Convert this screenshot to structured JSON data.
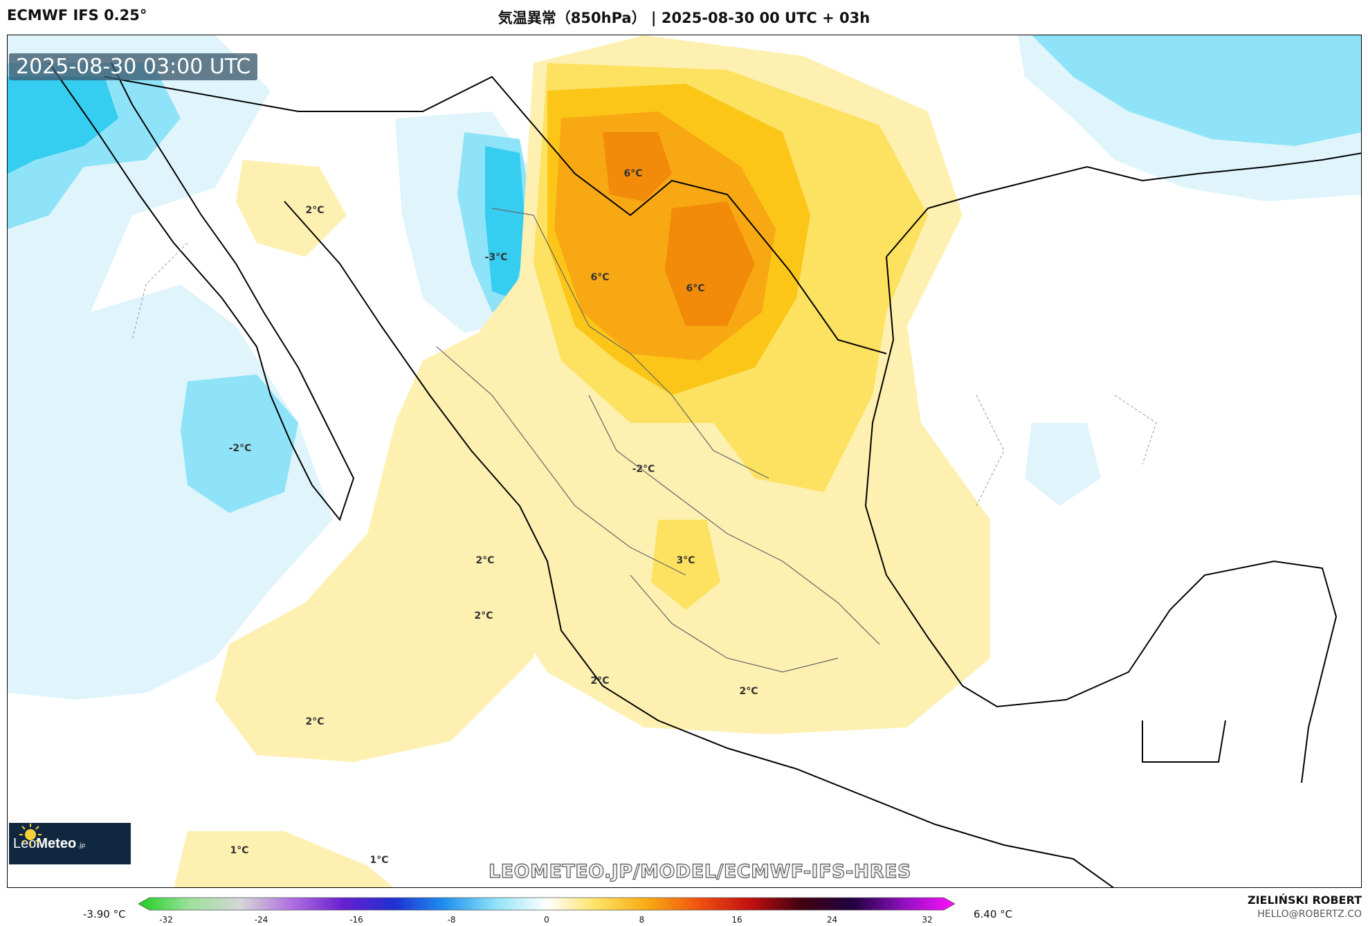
{
  "header": {
    "model": "ECMWF IFS 0.25°",
    "title": "気温異常（850hPa） | 2025-08-30 00 UTC + 03h"
  },
  "map": {
    "valid_time": "2025-08-30 03:00 UTC",
    "watermark": "LEOMETEO.JP/MODEL/ECMWF-IFS-HRES",
    "contour_labels": [
      "6°C",
      "6°C",
      "6°C",
      "2°C",
      "-3°C",
      "-2°C",
      "-2°C",
      "3°C",
      "2°C",
      "2°C",
      "2°C",
      "2°C",
      "2°C",
      "1°C",
      "1°C"
    ],
    "colors": {
      "cold_strong": "#35cdf0",
      "cold_mid": "#8fe3f8",
      "cold_light": "#dff4fb",
      "warm_light": "#fdf0b0",
      "warm_mid": "#fde160",
      "warm_strong": "#fcc619",
      "hot": "#f8a812",
      "hotter": "#f28a0a"
    }
  },
  "logo": {
    "brand_light": "Leo",
    "brand_bold": "Meteo",
    "suffix": ".jp"
  },
  "legend": {
    "min_label": "-3.90 °C",
    "max_label": "6.40 °C",
    "ticks": [
      "-32",
      "-24",
      "-16",
      "-8",
      "0",
      "8",
      "16",
      "24",
      "32"
    ],
    "stops": [
      "#1fd11f",
      "#9be09b",
      "#d6d6d6",
      "#b070e0",
      "#6a1fd0",
      "#1f2fd0",
      "#1f90f0",
      "#8fe3f8",
      "#ffffff",
      "#fde160",
      "#f8a812",
      "#f05010",
      "#c01010",
      "#400010",
      "#200040",
      "#9010c0",
      "#ff10ff"
    ]
  },
  "credit": {
    "author": "ZIELIŃSKI ROBERT",
    "email": "HELLO@ROBERTZ.CO"
  }
}
